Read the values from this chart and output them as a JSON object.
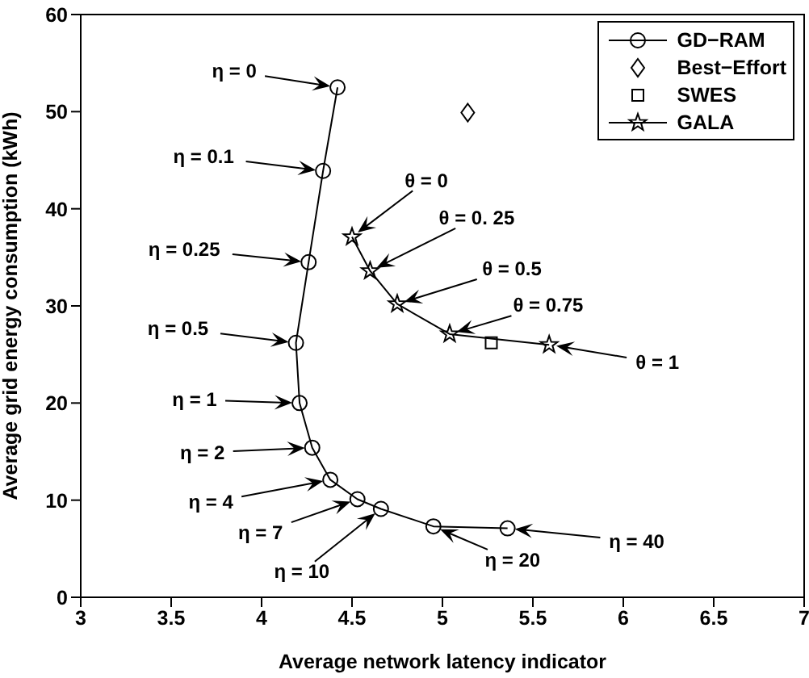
{
  "chart_data": {
    "type": "line",
    "xlabel": "Average network latency indicator",
    "ylabel": "Average grid energy consumption (kWh)",
    "xlim": [
      3,
      7
    ],
    "xticks": [
      3,
      3.5,
      4,
      4.5,
      5,
      5.5,
      6,
      6.5,
      7
    ],
    "ylim": [
      0,
      60
    ],
    "yticks": [
      0,
      10,
      20,
      30,
      40,
      50,
      60
    ],
    "grid": false,
    "legend": "top right",
    "series": [
      {
        "name": "GD−RAM",
        "type": "line",
        "marker": "circle",
        "line_style": "solid",
        "color": "#000000",
        "x": [
          4.42,
          4.34,
          4.26,
          4.19,
          4.21,
          4.28,
          4.38,
          4.53,
          4.66,
          4.95,
          5.36
        ],
        "values": [
          52.5,
          43.9,
          34.5,
          26.2,
          20.0,
          15.4,
          12.1,
          10.1,
          9.1,
          7.3,
          7.1
        ]
      },
      {
        "name": "Best−Effort",
        "type": "scatter",
        "marker": "diamond",
        "color": "#000000",
        "x": [
          5.14
        ],
        "values": [
          49.9
        ]
      },
      {
        "name": "SWES",
        "type": "scatter",
        "marker": "square",
        "color": "#000000",
        "x": [
          5.27
        ],
        "values": [
          26.2
        ]
      },
      {
        "name": "GALA",
        "type": "line",
        "marker": "star",
        "line_style": "solid",
        "color": "#000000",
        "x": [
          4.5,
          4.6,
          4.75,
          5.04,
          5.59
        ],
        "values": [
          37.1,
          33.6,
          30.2,
          27.1,
          26.0
        ]
      }
    ],
    "annotations": [
      "η = 0",
      "η = 0.1",
      "η = 0.25",
      "η = 0.5",
      "η = 1",
      "η = 2",
      "η = 4",
      "η = 7",
      "η = 10",
      "η = 20",
      "η = 40",
      "θ = 0",
      "θ = 0. 25",
      "θ = 0.5",
      "θ = 0.75",
      "θ = 1"
    ]
  }
}
